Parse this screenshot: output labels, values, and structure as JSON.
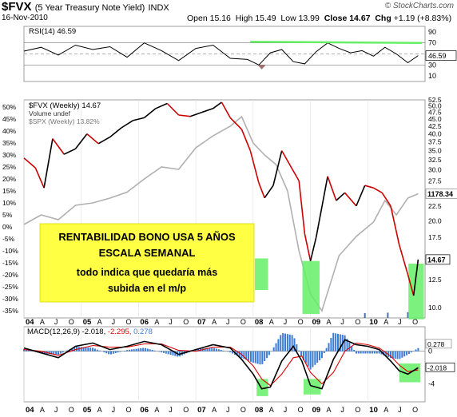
{
  "header": {
    "ticker": "$FVX",
    "description": "(5 Year Treasury Note Yield)",
    "exchange": "INDX",
    "date": "16-Nov-2010",
    "open_label": "Open",
    "open": "15.16",
    "high_label": "High",
    "high": "15.49",
    "low_label": "Low",
    "low": "13.99",
    "close_label": "Close",
    "close": "14.67",
    "chg_label": "Chg",
    "chg": "+1.19 (+8.83%)",
    "credit": "© StockCharts.com"
  },
  "colors": {
    "price_up": "#000000",
    "price_down": "#cc0000",
    "spx": "#b0b0b0",
    "volume": "#4a6fa5",
    "green_highlight": "#66ee66",
    "annotation_bg": "#ffff44",
    "macd_line": "#000000",
    "signal_line": "#dd0000",
    "histogram": "#3a7bd5",
    "rsi_down_fill": "#a07070"
  },
  "chart_data": [
    {
      "type": "line",
      "name": "rsi_panel",
      "legend": "RSI(14) 46.59",
      "last_value": "46.59",
      "ylim": [
        0,
        100
      ],
      "right_ticks": [
        "90",
        "70",
        "50",
        "30",
        "10"
      ],
      "tick_values": [
        90,
        70,
        50,
        30,
        10
      ],
      "reference_lines": [
        70,
        30
      ],
      "resistance_line": {
        "from_year": 2007.95,
        "to_year": 2010.95,
        "level": 72
      },
      "x": [
        2004.0,
        2004.3,
        2004.6,
        2004.9,
        2005.2,
        2005.5,
        2005.8,
        2006.1,
        2006.4,
        2006.7,
        2007.0,
        2007.3,
        2007.6,
        2007.9,
        2008.1,
        2008.3,
        2008.5,
        2008.7,
        2008.9,
        2009.1,
        2009.3,
        2009.5,
        2009.7,
        2009.9,
        2010.1,
        2010.3,
        2010.5,
        2010.7,
        2010.88
      ],
      "values": [
        55,
        62,
        48,
        66,
        58,
        63,
        44,
        70,
        56,
        38,
        60,
        66,
        42,
        40,
        30,
        52,
        58,
        36,
        32,
        54,
        70,
        60,
        52,
        56,
        46,
        62,
        50,
        34,
        47
      ]
    },
    {
      "type": "line",
      "name": "price_panel",
      "legend_fvx": "$FVX (Weekly) 14.67",
      "legend_volume": "Volume undef",
      "legend_spx": "$SPX (Weekly) 13.82%",
      "ylim_left": [
        -38,
        53
      ],
      "left_ticks": [
        "50%",
        "45%",
        "40%",
        "35%",
        "30%",
        "25%",
        "20%",
        "15%",
        "10%",
        "5%",
        "0%",
        "-5%",
        "-10%",
        "-15%",
        "-20%",
        "-25%",
        "-30%",
        "-35%"
      ],
      "left_tick_values": [
        50,
        45,
        40,
        35,
        30,
        25,
        20,
        15,
        10,
        5,
        0,
        -5,
        -10,
        -15,
        -20,
        -25,
        -30,
        -35
      ],
      "ylim_right": [
        9.2,
        52.5
      ],
      "right_ticks": [
        "52.5",
        "50.0",
        "47.5",
        "45.0",
        "42.5",
        "40.0",
        "37.5",
        "35.0",
        "32.5",
        "30.0",
        "27.5",
        "25.0",
        "22.5",
        "20.0",
        "17.5",
        "15.0",
        "12.5",
        "10.0"
      ],
      "right_tick_values": [
        52.5,
        50,
        47.5,
        45,
        42.5,
        40,
        37.5,
        35,
        32.5,
        30,
        27.5,
        25,
        22.5,
        20,
        17.5,
        15,
        12.5,
        10
      ],
      "log_scale": true,
      "spx_last_label": "1178.34",
      "fvx_last_label": "14.67",
      "fvx_x": [
        2004.0,
        2004.2,
        2004.35,
        2004.5,
        2004.7,
        2004.9,
        2005.1,
        2005.3,
        2005.5,
        2005.7,
        2005.9,
        2006.1,
        2006.3,
        2006.5,
        2006.7,
        2006.9,
        2007.1,
        2007.3,
        2007.45,
        2007.6,
        2007.8,
        2007.95,
        2008.1,
        2008.2,
        2008.35,
        2008.5,
        2008.65,
        2008.8,
        2008.9,
        2009.0,
        2009.1,
        2009.3,
        2009.45,
        2009.6,
        2009.8,
        2009.95,
        2010.1,
        2010.25,
        2010.4,
        2010.55,
        2010.7,
        2010.8,
        2010.88
      ],
      "fvx_values": [
        33.0,
        30.5,
        26.0,
        38.5,
        34.0,
        35.5,
        40.0,
        37.0,
        39.0,
        42.0,
        44.5,
        45.5,
        49.0,
        51.0,
        46.5,
        46.0,
        47.5,
        49.0,
        51.5,
        45.5,
        41.5,
        35.0,
        27.0,
        24.0,
        26.5,
        35.0,
        31.0,
        27.5,
        18.0,
        14.5,
        17.5,
        28.5,
        23.5,
        25.0,
        22.5,
        26.5,
        26.0,
        25.0,
        22.5,
        16.5,
        13.0,
        11.0,
        14.67
      ],
      "spx_x": [
        2004.0,
        2004.3,
        2004.6,
        2004.9,
        2005.2,
        2005.5,
        2005.8,
        2006.1,
        2006.4,
        2006.7,
        2007.0,
        2007.3,
        2007.6,
        2007.8,
        2008.0,
        2008.2,
        2008.4,
        2008.6,
        2008.8,
        2009.0,
        2009.2,
        2009.5,
        2009.8,
        2010.1,
        2010.3,
        2010.5,
        2010.7,
        2010.88
      ],
      "spx_values": [
        1.0,
        5.0,
        3.0,
        9.0,
        10.0,
        12.0,
        14.5,
        20.0,
        25.0,
        24.0,
        33.0,
        38.0,
        42.0,
        46.0,
        35.0,
        30.0,
        26.0,
        15.0,
        -10.0,
        -28.0,
        -35.0,
        -12.0,
        -4.0,
        2.0,
        11.0,
        5.0,
        12.0,
        13.82
      ],
      "volume_x": [
        2009.95,
        2010.35,
        2010.7
      ],
      "volume_values": [
        1.0,
        1.1,
        1.2
      ],
      "highlight_boxes": [
        {
          "x0": 2008.03,
          "x1": 2008.26,
          "y0": 14.8,
          "y1": 11.5
        },
        {
          "x0": 2008.86,
          "x1": 2009.16,
          "y0": 14.5,
          "y1": 9.5
        },
        {
          "x0": 2010.71,
          "x1": 2010.98,
          "y0": 14.2,
          "y1": 9.1
        }
      ],
      "annotation": {
        "line1": "RENTABILIDAD BONO USA 5 AÑOS",
        "line2": "ESCALA SEMANAL",
        "line3": "todo indica que quedaría más",
        "line4": "subida en el m/p"
      }
    },
    {
      "type": "line",
      "name": "macd_panel",
      "legend_prefix": "MACD(12,26,9)",
      "macd_value": "-2.018",
      "signal_value": "-2.295",
      "hist_value": "0.278",
      "ylim": [
        -6.2,
        3.0
      ],
      "right_ticks": [
        "0",
        "-2",
        "-4"
      ],
      "tick_values": [
        0,
        -2,
        -4
      ],
      "x": [
        2004.0,
        2004.3,
        2004.6,
        2004.9,
        2005.2,
        2005.5,
        2005.8,
        2006.1,
        2006.4,
        2006.7,
        2007.0,
        2007.3,
        2007.6,
        2007.8,
        2008.0,
        2008.15,
        2008.3,
        2008.5,
        2008.7,
        2008.85,
        2009.0,
        2009.2,
        2009.4,
        2009.6,
        2009.8,
        2010.0,
        2010.2,
        2010.4,
        2010.55,
        2010.7,
        2010.88
      ],
      "macd": [
        0.4,
        -0.2,
        -0.8,
        0.6,
        1.0,
        0.2,
        0.6,
        1.2,
        0.8,
        -0.4,
        0.2,
        0.8,
        0.4,
        -1.0,
        -2.8,
        -4.6,
        -4.4,
        -1.2,
        0.6,
        -1.2,
        -4.2,
        -4.6,
        -1.0,
        1.4,
        0.8,
        0.6,
        0.2,
        -1.2,
        -2.4,
        -2.8,
        -2.018
      ],
      "signal": [
        0.2,
        0.0,
        -0.5,
        0.2,
        0.7,
        0.5,
        0.5,
        0.9,
        0.9,
        0.1,
        0.0,
        0.5,
        0.5,
        -0.4,
        -1.8,
        -3.4,
        -4.2,
        -2.8,
        -0.8,
        -0.6,
        -2.6,
        -4.0,
        -2.6,
        0.0,
        1.0,
        0.8,
        0.4,
        -0.6,
        -1.7,
        -2.5,
        -2.295
      ],
      "highlight_boxes": [
        {
          "x0": 2008.06,
          "x1": 2008.26,
          "y0": -3.4,
          "y1": -5.5
        },
        {
          "x0": 2008.88,
          "x1": 2009.18,
          "y0": -3.4,
          "y1": -5.3
        },
        {
          "x0": 2010.55,
          "x1": 2010.92,
          "y0": -1.5,
          "y1": -3.8
        }
      ]
    }
  ],
  "x_axis": {
    "labels": [
      {
        "t": 2004.0,
        "text": "04",
        "bold": true
      },
      {
        "t": 2004.25,
        "text": "A"
      },
      {
        "t": 2004.5,
        "text": "J"
      },
      {
        "t": 2004.75,
        "text": "O"
      },
      {
        "t": 2005.0,
        "text": "05",
        "bold": true
      },
      {
        "t": 2005.25,
        "text": "A"
      },
      {
        "t": 2005.5,
        "text": "J"
      },
      {
        "t": 2005.75,
        "text": "O"
      },
      {
        "t": 2006.0,
        "text": "06",
        "bold": true
      },
      {
        "t": 2006.25,
        "text": "A"
      },
      {
        "t": 2006.5,
        "text": "J"
      },
      {
        "t": 2006.75,
        "text": "O"
      },
      {
        "t": 2007.0,
        "text": "07",
        "bold": true
      },
      {
        "t": 2007.25,
        "text": "A"
      },
      {
        "t": 2007.5,
        "text": "J"
      },
      {
        "t": 2007.75,
        "text": "O"
      },
      {
        "t": 2008.0,
        "text": "08",
        "bold": true
      },
      {
        "t": 2008.25,
        "text": "A"
      },
      {
        "t": 2008.5,
        "text": "J"
      },
      {
        "t": 2008.75,
        "text": "O"
      },
      {
        "t": 2009.0,
        "text": "09",
        "bold": true
      },
      {
        "t": 2009.25,
        "text": "A"
      },
      {
        "t": 2009.5,
        "text": "J"
      },
      {
        "t": 2009.75,
        "text": "O"
      },
      {
        "t": 2010.0,
        "text": "10",
        "bold": true
      },
      {
        "t": 2010.25,
        "text": "A"
      },
      {
        "t": 2010.5,
        "text": "J"
      },
      {
        "t": 2010.75,
        "text": "O"
      }
    ]
  }
}
